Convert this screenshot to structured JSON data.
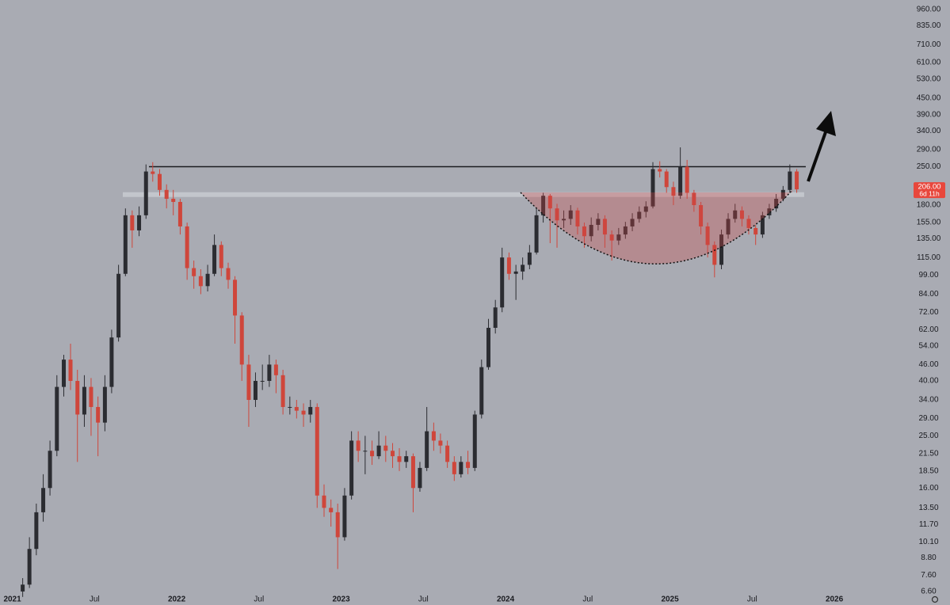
{
  "chart_data": {
    "type": "candlestick",
    "log_scale": true,
    "up_color": "#2b2c31",
    "down_color": "#cf463b",
    "x": [
      2021.063,
      2021.104,
      2021.146,
      2021.188,
      2021.229,
      2021.271,
      2021.313,
      2021.354,
      2021.396,
      2021.438,
      2021.479,
      2021.521,
      2021.563,
      2021.604,
      2021.646,
      2021.688,
      2021.729,
      2021.771,
      2021.813,
      2021.854,
      2021.896,
      2021.938,
      2021.979,
      2022.021,
      2022.063,
      2022.104,
      2022.146,
      2022.188,
      2022.229,
      2022.271,
      2022.313,
      2022.354,
      2022.396,
      2022.438,
      2022.479,
      2022.521,
      2022.563,
      2022.604,
      2022.646,
      2022.688,
      2022.729,
      2022.771,
      2022.813,
      2022.854,
      2022.896,
      2022.938,
      2022.979,
      2023.021,
      2023.063,
      2023.104,
      2023.146,
      2023.188,
      2023.229,
      2023.271,
      2023.313,
      2023.354,
      2023.396,
      2023.438,
      2023.479,
      2023.521,
      2023.563,
      2023.604,
      2023.646,
      2023.688,
      2023.729,
      2023.771,
      2023.813,
      2023.854,
      2023.896,
      2023.938,
      2023.979,
      2024.021,
      2024.063,
      2024.104,
      2024.146,
      2024.188,
      2024.229,
      2024.271,
      2024.313,
      2024.354,
      2024.396,
      2024.438,
      2024.479,
      2024.521,
      2024.563,
      2024.604,
      2024.646,
      2024.688,
      2024.729,
      2024.771,
      2024.813,
      2024.854,
      2024.896,
      2024.938,
      2024.979,
      2025.021,
      2025.063,
      2025.104,
      2025.146,
      2025.188,
      2025.229,
      2025.271,
      2025.313,
      2025.354,
      2025.396,
      2025.438,
      2025.479,
      2025.521,
      2025.563,
      2025.604,
      2025.646,
      2025.688,
      2025.729,
      2025.771
    ],
    "open": [
      6.6,
      7,
      9.5,
      13,
      16,
      22,
      38,
      48,
      40,
      30,
      38,
      32,
      28,
      38,
      58,
      100,
      165,
      145,
      165,
      240,
      235,
      205,
      190,
      185,
      150,
      105,
      98,
      90,
      100,
      128,
      105,
      95,
      70,
      46,
      34,
      40,
      40,
      46,
      42,
      32,
      32,
      31,
      30,
      32,
      15,
      13.5,
      13,
      10.5,
      15,
      24,
      22,
      22,
      21,
      23,
      22,
      21,
      20,
      21,
      16,
      19,
      26,
      24,
      23,
      20,
      18,
      20,
      19,
      30,
      45,
      63,
      75,
      115,
      100,
      102,
      108,
      120,
      165,
      195,
      175,
      158,
      160,
      172,
      150,
      138,
      152,
      160,
      140,
      133,
      140,
      150,
      160,
      170,
      178,
      245,
      240,
      210,
      195,
      250,
      200,
      180,
      150,
      128,
      108,
      140,
      160,
      172,
      160,
      148,
      140,
      165,
      175,
      190,
      205,
      240
    ],
    "high": [
      7.4,
      10.5,
      14,
      18,
      24,
      42,
      50,
      55,
      44,
      42,
      41,
      35,
      42,
      62,
      108,
      175,
      172,
      178,
      255,
      260,
      245,
      215,
      205,
      190,
      155,
      112,
      104,
      108,
      140,
      132,
      110,
      98,
      72,
      50,
      43,
      46,
      50,
      48,
      44,
      35,
      34,
      33,
      34,
      33,
      16.5,
      14.5,
      14,
      16,
      26,
      26,
      25,
      24,
      26,
      25,
      23.5,
      22.5,
      22,
      21.5,
      20,
      32,
      28,
      25.5,
      24,
      21,
      21,
      22,
      31,
      48,
      68,
      80,
      125,
      120,
      108,
      115,
      128,
      175,
      200,
      198,
      182,
      172,
      180,
      176,
      155,
      162,
      168,
      165,
      145,
      148,
      156,
      168,
      178,
      186,
      260,
      262,
      245,
      220,
      295,
      265,
      205,
      185,
      155,
      132,
      146,
      168,
      182,
      178,
      165,
      152,
      170,
      182,
      198,
      212,
      255,
      245
    ],
    "low": [
      6.3,
      6.8,
      9,
      12,
      15,
      21,
      35,
      37,
      20,
      27,
      25,
      21,
      26,
      36,
      56,
      98,
      125,
      138,
      160,
      220,
      195,
      175,
      165,
      140,
      95,
      88,
      84,
      86,
      98,
      98,
      88,
      55,
      40,
      27,
      32,
      37,
      38,
      36,
      30,
      30,
      29,
      27,
      28,
      13.5,
      12.5,
      11.5,
      8,
      10.2,
      14.5,
      20,
      18,
      19.5,
      20.5,
      20,
      19,
      18.5,
      19,
      13,
      15.5,
      18.5,
      22,
      21.5,
      19,
      17,
      17.5,
      18,
      18.5,
      29,
      44,
      60,
      72,
      95,
      80,
      95,
      104,
      118,
      155,
      130,
      125,
      148,
      152,
      140,
      125,
      132,
      145,
      125,
      112,
      128,
      135,
      144,
      155,
      162,
      175,
      228,
      200,
      180,
      190,
      190,
      170,
      140,
      115,
      97,
      104,
      135,
      155,
      150,
      140,
      128,
      136,
      160,
      170,
      186,
      200,
      200
    ],
    "close": [
      7,
      9.5,
      13,
      16,
      22,
      38,
      48,
      40,
      30,
      38,
      32,
      28,
      38,
      58,
      100,
      165,
      145,
      165,
      240,
      235,
      205,
      190,
      185,
      150,
      105,
      98,
      90,
      100,
      128,
      105,
      95,
      70,
      46,
      34,
      40,
      40,
      46,
      42,
      32,
      32,
      31,
      30,
      32,
      15,
      13.5,
      13,
      10.5,
      15,
      24,
      22,
      22,
      21,
      23,
      22,
      21,
      20,
      21,
      16,
      19,
      26,
      24,
      23,
      20,
      18,
      20,
      19,
      30,
      45,
      63,
      75,
      115,
      100,
      102,
      108,
      120,
      165,
      195,
      175,
      158,
      160,
      172,
      150,
      138,
      152,
      160,
      140,
      133,
      140,
      150,
      160,
      170,
      178,
      245,
      240,
      210,
      195,
      250,
      200,
      180,
      150,
      128,
      108,
      140,
      160,
      172,
      160,
      148,
      140,
      165,
      175,
      190,
      205,
      240,
      206
    ],
    "xlim": [
      2020.925,
      2026.443
    ],
    "xticks": [
      {
        "value": 2021,
        "label": "2021"
      },
      {
        "value": 2021.5,
        "label": "Jul"
      },
      {
        "value": 2022,
        "label": "2022"
      },
      {
        "value": 2022.5,
        "label": "Jul"
      },
      {
        "value": 2023,
        "label": "2023"
      },
      {
        "value": 2023.5,
        "label": "Jul"
      },
      {
        "value": 2024,
        "label": "2024"
      },
      {
        "value": 2024.5,
        "label": "Jul"
      },
      {
        "value": 2025,
        "label": "2025"
      },
      {
        "value": 2025.5,
        "label": "Jul"
      },
      {
        "value": 2026,
        "label": "2026"
      }
    ],
    "ylim": [
      5.88,
      1041
    ],
    "yticks": [
      {
        "value": 960,
        "label": "960.00"
      },
      {
        "value": 835,
        "label": "835.00"
      },
      {
        "value": 710,
        "label": "710.00"
      },
      {
        "value": 610,
        "label": "610.00"
      },
      {
        "value": 530,
        "label": "530.00"
      },
      {
        "value": 450,
        "label": "450.00"
      },
      {
        "value": 390,
        "label": "390.00"
      },
      {
        "value": 340,
        "label": "340.00"
      },
      {
        "value": 290,
        "label": "290.00"
      },
      {
        "value": 250,
        "label": "250.00"
      },
      {
        "value": 180,
        "label": "180.00"
      },
      {
        "value": 155,
        "label": "155.00"
      },
      {
        "value": 135,
        "label": "135.00"
      },
      {
        "value": 115,
        "label": "115.00"
      },
      {
        "value": 99,
        "label": "99.00"
      },
      {
        "value": 84,
        "label": "84.00"
      },
      {
        "value": 72,
        "label": "72.00"
      },
      {
        "value": 62,
        "label": "62.00"
      },
      {
        "value": 54,
        "label": "54.00"
      },
      {
        "value": 46,
        "label": "46.00"
      },
      {
        "value": 40,
        "label": "40.00"
      },
      {
        "value": 34,
        "label": "34.00"
      },
      {
        "value": 29,
        "label": "29.00"
      },
      {
        "value": 25,
        "label": "25.00"
      },
      {
        "value": 21.5,
        "label": "21.50"
      },
      {
        "value": 18.5,
        "label": "18.50"
      },
      {
        "value": 16,
        "label": "16.00"
      },
      {
        "value": 13.5,
        "label": "13.50"
      },
      {
        "value": 11.7,
        "label": "11.70"
      },
      {
        "value": 10.1,
        "label": "10.10"
      },
      {
        "value": 8.8,
        "label": "8.80"
      },
      {
        "value": 7.6,
        "label": "7.60"
      },
      {
        "value": 6.6,
        "label": "6.60"
      }
    ],
    "resistance": {
      "value": 250,
      "x": [
        2021.831,
        2025.826
      ],
      "color": "#1b1c20"
    },
    "band": {
      "y": [
        193,
        201
      ],
      "x": [
        2021.672,
        2025.816
      ],
      "color": "#c8cad0"
    },
    "last_price": {
      "value": 206,
      "label": "206.00",
      "color": "#e8473c"
    },
    "countdown": "6d 11h"
  }
}
